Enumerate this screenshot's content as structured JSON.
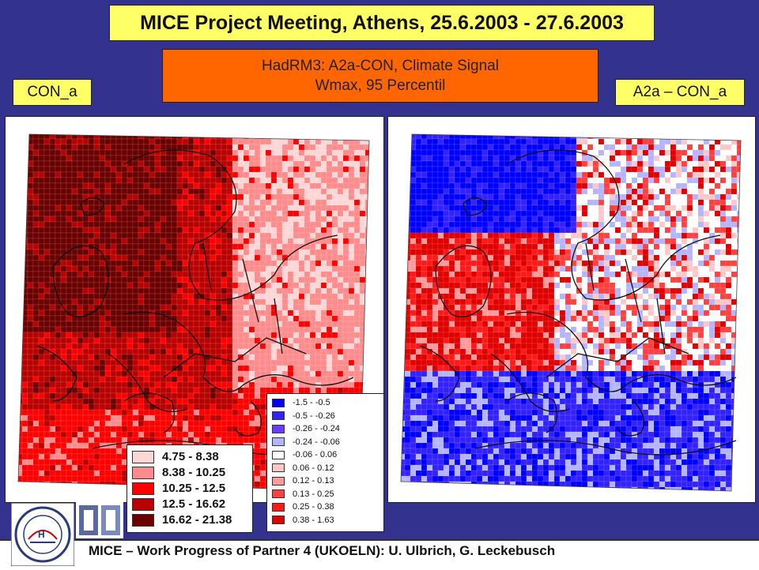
{
  "header": {
    "title": "MICE Project Meeting, Athens, 25.6.2003 - 27.6.2003",
    "subtitle_line1": "HadRM3: A2a-CON, Climate Signal",
    "subtitle_line2": "Wmax, 95 Percentil"
  },
  "panels": {
    "left_label": "CON_a",
    "right_label": "A2a – CON_a"
  },
  "legend_left": [
    {
      "label": "4.75 - 8.38",
      "color": "#ffd6d6"
    },
    {
      "label": "8.38 - 10.25",
      "color": "#ff8c8c"
    },
    {
      "label": "10.25 - 12.5",
      "color": "#ff0000"
    },
    {
      "label": "12.5 - 16.62",
      "color": "#b80000"
    },
    {
      "label": "16.62 - 21.38",
      "color": "#6b0000"
    }
  ],
  "legend_right": [
    {
      "label": "-1.5 - -0.5",
      "color": "#0000ff"
    },
    {
      "label": "-0.5 - -0.26",
      "color": "#3322ff"
    },
    {
      "label": "-0.26 - -0.24",
      "color": "#6a3cff"
    },
    {
      "label": "-0.24 - -0.06",
      "color": "#b4b4ff"
    },
    {
      "label": "-0.06 - 0.06",
      "color": "#ffffff"
    },
    {
      "label": "0.06 - 0.12",
      "color": "#ffc8c8"
    },
    {
      "label": "0.12 - 0.13",
      "color": "#ff9a9a"
    },
    {
      "label": "0.13 - 0.25",
      "color": "#ff4040"
    },
    {
      "label": "0.25 - 0.38",
      "color": "#ff1a1a"
    },
    {
      "label": "0.38 - 1.63",
      "color": "#e00000"
    }
  ],
  "footer": {
    "text": "MICE – Work Progress of Partner 4 (UKOELN): U. Ulbrich, G. Leckebusch"
  },
  "icons": {
    "logo": "igm-university-cologne-logo",
    "partner_logo": "partner-logo-icon"
  }
}
